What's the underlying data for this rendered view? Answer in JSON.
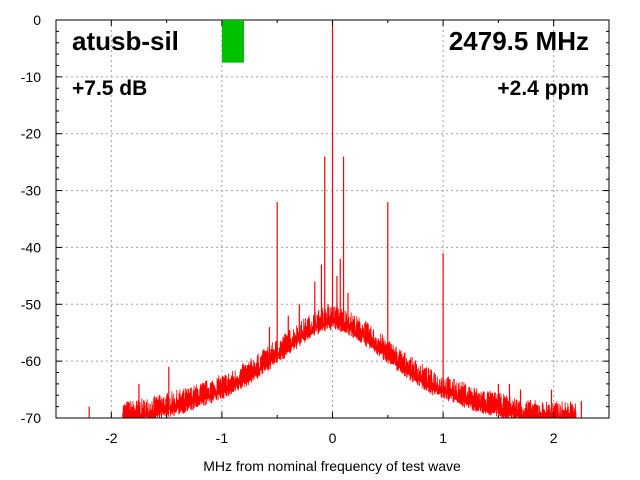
{
  "chart_data": {
    "type": "line",
    "title_left": "atusb-sil",
    "title_right": "2479.5 MHz",
    "annotation_left": "+7.5 dB",
    "annotation_right": "+2.4 ppm",
    "xlabel": "MHz from nominal frequency of test wave",
    "ylabel": "",
    "xlim": [
      -2.5,
      2.5
    ],
    "ylim": [
      -70,
      0
    ],
    "x_ticks": [
      -2,
      -1,
      0,
      1,
      2
    ],
    "x_tick_labels": [
      "-2",
      "-1",
      "0",
      "1",
      "2"
    ],
    "y_ticks": [
      0,
      -10,
      -20,
      -30,
      -40,
      -50,
      -60,
      -70
    ],
    "y_tick_labels": [
      "0",
      "-10",
      "-20",
      "-30",
      "-40",
      "-50",
      "-60",
      "-70"
    ],
    "grid": true,
    "level_indicator": {
      "color": "#00c000",
      "x_range": [
        -1.0,
        -0.8
      ],
      "y_range": [
        -7.5,
        0
      ]
    },
    "series": [
      {
        "name": "spectrum",
        "color": "#ff0000",
        "envelope": {
          "x": [
            -1.9,
            -1.7,
            -1.5,
            -1.3,
            -1.1,
            -0.9,
            -0.7,
            -0.5,
            -0.3,
            -0.15,
            0.0,
            0.15,
            0.3,
            0.5,
            0.7,
            0.9,
            1.1,
            1.3,
            1.5,
            1.7,
            1.9,
            2.1
          ],
          "y": [
            -70,
            -69.5,
            -68.5,
            -67.5,
            -66,
            -64.5,
            -62,
            -59,
            -56,
            -54,
            -53,
            -54,
            -56,
            -59,
            -62,
            -64.5,
            -66,
            -67.5,
            -68.5,
            -69.5,
            -70,
            -70
          ]
        },
        "spurs": [
          {
            "x": -2.2,
            "y": -68
          },
          {
            "x": -1.75,
            "y": -64
          },
          {
            "x": -1.48,
            "y": -61
          },
          {
            "x": -1.0,
            "y": -64
          },
          {
            "x": -0.98,
            "y": -65
          },
          {
            "x": -0.57,
            "y": -54
          },
          {
            "x": -0.5,
            "y": -32
          },
          {
            "x": -0.4,
            "y": -52
          },
          {
            "x": -0.3,
            "y": -50
          },
          {
            "x": -0.16,
            "y": -46
          },
          {
            "x": -0.1,
            "y": -43
          },
          {
            "x": -0.07,
            "y": -24
          },
          {
            "x": -0.04,
            "y": -50
          },
          {
            "x": 0.0,
            "y": 0
          },
          {
            "x": 0.04,
            "y": -45
          },
          {
            "x": 0.07,
            "y": -42
          },
          {
            "x": 0.1,
            "y": -24
          },
          {
            "x": 0.14,
            "y": -48
          },
          {
            "x": 0.3,
            "y": -53
          },
          {
            "x": 0.5,
            "y": -32
          },
          {
            "x": 0.92,
            "y": -62
          },
          {
            "x": 1.0,
            "y": -41
          },
          {
            "x": 1.1,
            "y": -65
          },
          {
            "x": 1.5,
            "y": -64
          },
          {
            "x": 1.6,
            "y": -64
          },
          {
            "x": 1.7,
            "y": -65
          },
          {
            "x": 1.98,
            "y": -65
          },
          {
            "x": 2.1,
            "y": -69
          },
          {
            "x": 2.2,
            "y": -69
          },
          {
            "x": 2.25,
            "y": -67
          }
        ]
      }
    ]
  }
}
